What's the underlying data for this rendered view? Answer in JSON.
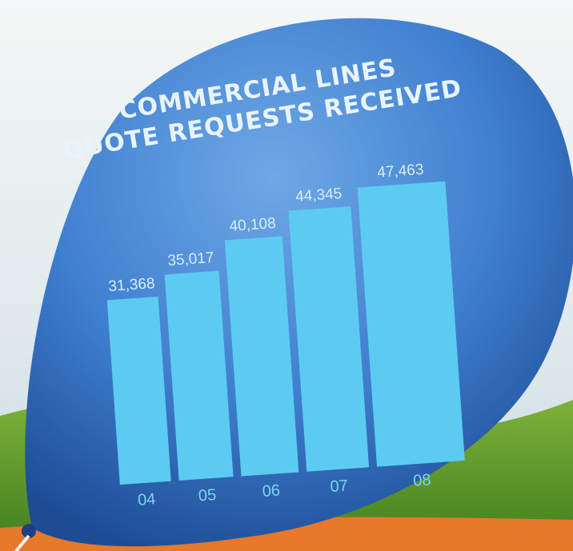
{
  "chart_data": {
    "type": "bar",
    "title": "COMMERCIAL LINES",
    "subtitle": "QUOTE REQUESTS RECEIVED",
    "categories": [
      "04",
      "05",
      "06",
      "07",
      "08"
    ],
    "values": [
      31368,
      35017,
      40108,
      44345,
      47463
    ],
    "value_labels": [
      "31,368",
      "35,017",
      "40,108",
      "44,345",
      "47,463"
    ],
    "color": "#5ccbf2"
  }
}
